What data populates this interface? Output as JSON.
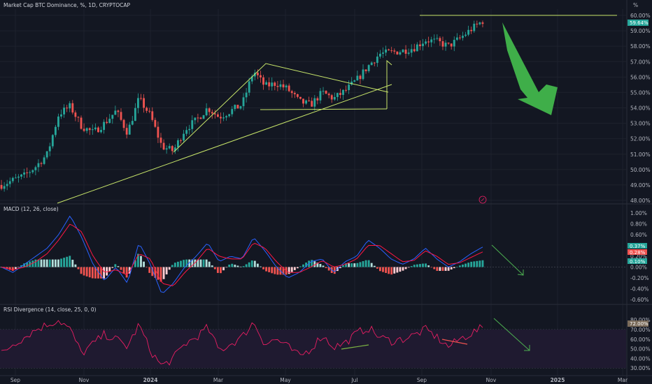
{
  "colors": {
    "background": "#131722",
    "grid": "#1e222d",
    "up_candle": "#26a69a",
    "down_candle": "#ef5350",
    "trendline": "#c8e66a",
    "big_arrow": "#3fae49",
    "macd_line": "#2962ff",
    "signal_line": "#ff1744",
    "hist_up": "#b2dfdb",
    "hist_down": "#ffcdd2",
    "rsi_line": "#e91e63",
    "rsi_band": "#2a2140",
    "small_arrow": "#4caf50"
  },
  "header": {
    "title": "Market Cap BTC Dominance, %, 1D, CRYPTOCAP",
    "percent_button": "%"
  },
  "x_axis": {
    "labels": [
      "Sep",
      "Nov",
      "2024",
      "Mar",
      "May",
      "Jul",
      "Sep",
      "Nov",
      "2025",
      "Mar"
    ]
  },
  "chart_data": [
    {
      "type": "candlestick",
      "title": "Market Cap BTC Dominance, %, 1D, CRYPTOCAP",
      "y_unit": "%",
      "ylim": [
        48,
        60
      ],
      "y_ticks": [
        "60.00%",
        "59.00%",
        "58.00%",
        "57.00%",
        "56.00%",
        "55.00%",
        "54.00%",
        "53.00%",
        "52.00%",
        "51.00%",
        "50.00%",
        "49.00%",
        "48.00%"
      ],
      "current_value_label": "59.64%",
      "x_range": [
        "Sep 2023",
        "Oct 2024"
      ],
      "close_series": [
        49.0,
        49.3,
        49.6,
        50.2,
        51.0,
        53.6,
        54.1,
        52.8,
        52.4,
        53.0,
        53.8,
        52.4,
        54.6,
        53.5,
        51.5,
        51.2,
        52.6,
        53.2,
        54.0,
        53.4,
        53.8,
        54.2,
        56.4,
        55.4,
        55.6,
        55.2,
        54.4,
        54.2,
        55.0,
        54.6,
        55.1,
        55.8,
        56.7,
        57.5,
        57.6,
        57.7,
        57.9,
        58.4,
        58.3,
        58.0,
        58.5,
        59.1,
        59.64
      ]
    },
    {
      "type": "line",
      "title": "MACD (12, 26, close)",
      "ylim": [
        -0.65,
        1.05
      ],
      "y_ticks": [
        "1.00%",
        "0.80%",
        "0.60%",
        "0.40%",
        "0.20%",
        "0.00%",
        "-0.20%",
        "-0.40%",
        "-0.60%"
      ],
      "value_labels": [
        "0.37%",
        "0.28%",
        "0.10%"
      ],
      "series": [
        {
          "values": [
            0.0,
            -0.1,
            0.05,
            0.2,
            0.35,
            0.6,
            0.95,
            0.55,
            0.05,
            -0.25,
            0.0,
            -0.3,
            0.45,
            0.05,
            -0.5,
            -0.3,
            0.0,
            0.2,
            0.45,
            0.1,
            0.2,
            0.15,
            0.55,
            0.3,
            0.0,
            -0.2,
            -0.1,
            0.1,
            0.15,
            -0.1,
            0.1,
            0.2,
            0.5,
            0.35,
            0.15,
            0.05,
            0.15,
            0.35,
            0.15,
            0.0,
            0.1,
            0.25,
            0.37
          ]
        },
        {
          "values": [
            0.0,
            -0.05,
            0.0,
            0.1,
            0.25,
            0.5,
            0.8,
            0.65,
            0.2,
            -0.1,
            -0.05,
            -0.15,
            0.25,
            0.15,
            -0.3,
            -0.35,
            -0.1,
            0.1,
            0.35,
            0.2,
            0.15,
            0.15,
            0.45,
            0.35,
            0.1,
            -0.1,
            -0.1,
            0.0,
            0.12,
            0.0,
            0.05,
            0.15,
            0.4,
            0.4,
            0.25,
            0.1,
            0.12,
            0.3,
            0.2,
            0.05,
            0.08,
            0.18,
            0.28
          ]
        }
      ]
    },
    {
      "type": "line",
      "title": "RSI Divergence (14, close, 25, 0, 0)",
      "ylim": [
        28,
        83
      ],
      "y_ticks": [
        "80.00%",
        "70.00%",
        "60.00%",
        "50.00%",
        "40.00%",
        "30.00%"
      ],
      "value_label": "72.00%",
      "band": [
        30,
        70
      ],
      "values": [
        45,
        55,
        62,
        70,
        75,
        80,
        70,
        45,
        55,
        65,
        60,
        52,
        75,
        48,
        32,
        40,
        55,
        62,
        72,
        48,
        55,
        62,
        78,
        55,
        60,
        52,
        42,
        50,
        64,
        52,
        56,
        66,
        72,
        62,
        58,
        60,
        64,
        70,
        62,
        52,
        60,
        66,
        72
      ]
    }
  ]
}
